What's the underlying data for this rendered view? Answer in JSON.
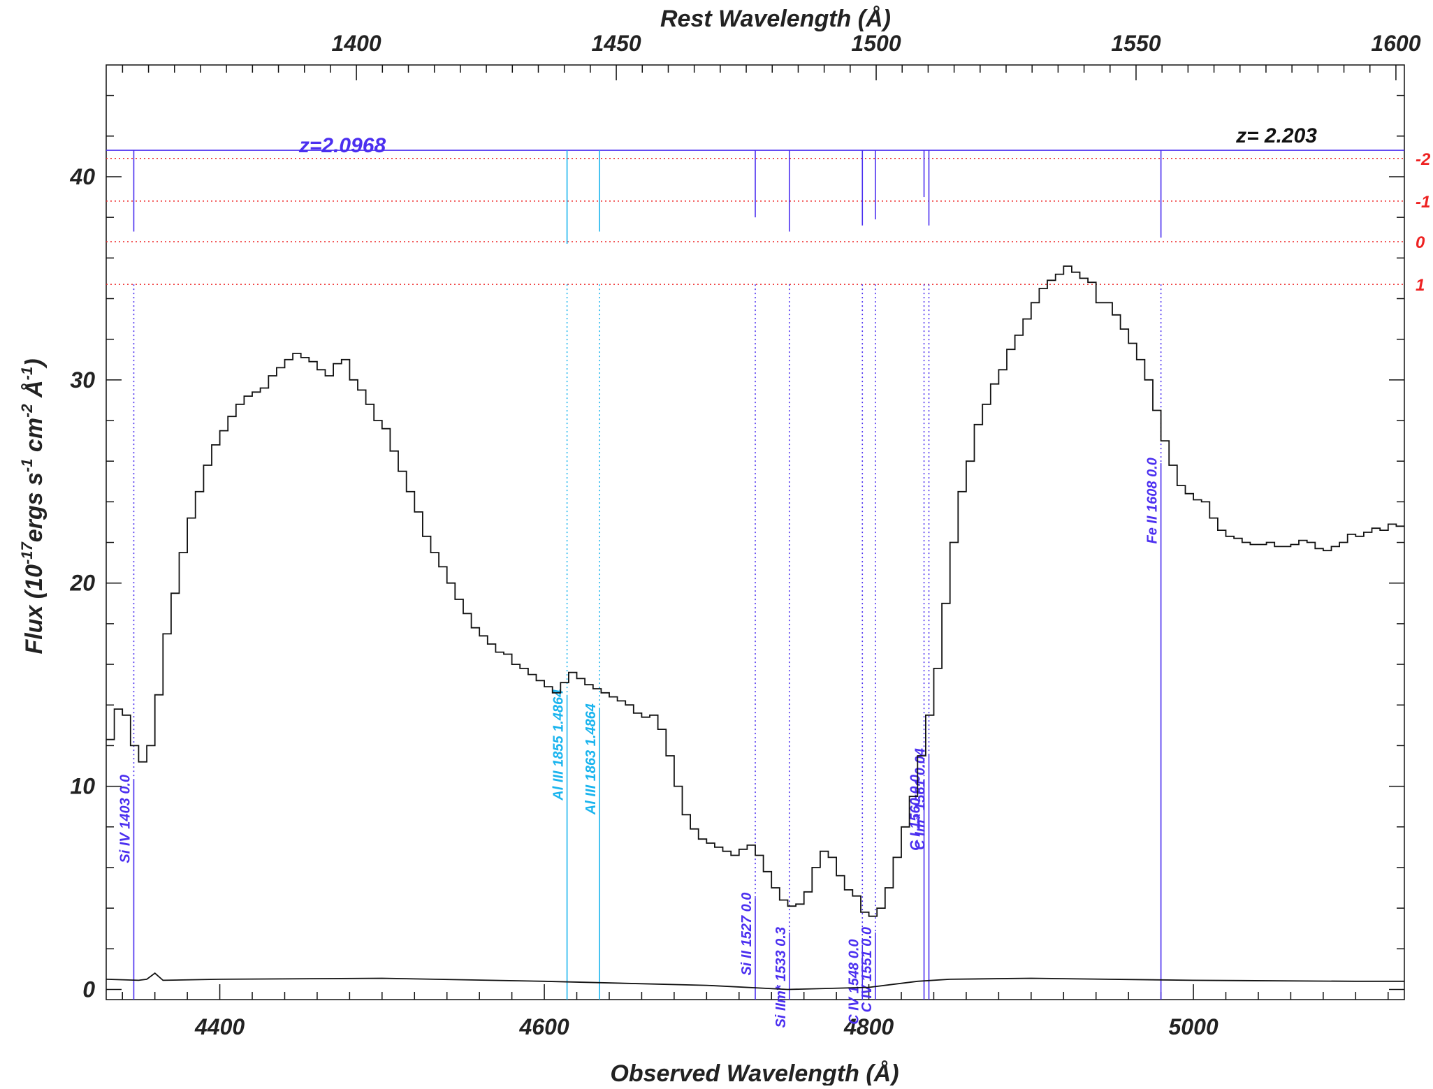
{
  "chart_data": {
    "type": "line",
    "xlabel": "Observed Wavelength (Å)",
    "ylabel": "Flux (10^-17 ergs s^-1 cm^-2 Å^-1)",
    "ylabel_parts": {
      "a": "Flux (10",
      "exp1": "-17",
      "b": "ergs s",
      "exp2": "-1",
      "c": " cm",
      "exp3": "-2",
      "d": " Å",
      "exp4": "-1",
      "e": ")"
    },
    "top_xlabel": "Rest Wavelength (Å)",
    "xlim": [
      4330,
      5130
    ],
    "ylim": [
      -0.5,
      45.5
    ],
    "x_ticks": [
      4400,
      4600,
      4800,
      5000
    ],
    "x_tick_labels": [
      "4400",
      "4600",
      "4800",
      "5000"
    ],
    "y_ticks": [
      0,
      10,
      20,
      30,
      40
    ],
    "y_tick_labels": [
      "0",
      "10",
      "20",
      "30",
      "40"
    ],
    "top_ticks": [
      1400,
      1450,
      1500,
      1550,
      1600
    ],
    "top_tick_labels": [
      "1400",
      "1450",
      "1500",
      "1550",
      "1600"
    ],
    "z_source": 2.203,
    "z_label": "z= 2.203",
    "absorber_label": "z=2.0968",
    "sigma_levels": [
      {
        "label": "-2",
        "y": 40.9
      },
      {
        "label": "-1",
        "y": 38.8
      },
      {
        "label": "0",
        "y": 36.8
      },
      {
        "label": "1",
        "y": 34.7
      }
    ],
    "absorber_top_y": 41.3,
    "colors": {
      "spectrum": "#111111",
      "error": "#111111",
      "blue": "#4b2ff0",
      "cyan": "#1ab4ee",
      "red": "#ee2222",
      "axis": "#111111"
    },
    "absorption_lines": [
      {
        "label": "Si IV 1403 0.0",
        "x": 4347,
        "color": "blue",
        "top_y": 37.3,
        "bottom_y": 10.3
      },
      {
        "label": "Al III 1855 1.4864",
        "x": 4614,
        "color": "cyan",
        "top_y": 36.7,
        "bottom_y": 14.5
      },
      {
        "label": "Al III 1863 1.4864",
        "x": 4634,
        "color": "cyan",
        "top_y": 37.3,
        "bottom_y": 13.8
      },
      {
        "label": "Si II 1527 0.0",
        "x": 4730,
        "color": "blue",
        "top_y": 38.0,
        "bottom_y": 4.5
      },
      {
        "label": "Si IIm* 1533 0.3",
        "x": 4751,
        "color": "blue",
        "top_y": 37.3,
        "bottom_y": 2.8
      },
      {
        "label": "C IV 1548 0.0",
        "x": 4796,
        "color": "blue",
        "top_y": 37.6,
        "bottom_y": 2.2
      },
      {
        "label": "C IV 1551 0.0",
        "x": 4804,
        "color": "blue",
        "top_y": 37.9,
        "bottom_y": 2.8
      },
      {
        "label": "C I 1560 0.0",
        "x": 4834,
        "color": "blue",
        "top_y": 39.0,
        "bottom_y": 10.3
      },
      {
        "label": "C Im* 1561 0.04",
        "x": 4837,
        "color": "blue",
        "top_y": 37.6,
        "bottom_y": 11.6
      },
      {
        "label": "Fe II 1608 0.0",
        "x": 4980,
        "color": "blue",
        "top_y": 37.0,
        "bottom_y": 25.9
      }
    ],
    "series": [
      {
        "name": "flux",
        "style": "histogram",
        "x": [
          4330,
          4335,
          4340,
          4345,
          4350,
          4355,
          4360,
          4365,
          4370,
          4375,
          4380,
          4385,
          4390,
          4395,
          4400,
          4405,
          4410,
          4415,
          4420,
          4425,
          4430,
          4435,
          4440,
          4445,
          4450,
          4455,
          4460,
          4465,
          4470,
          4475,
          4480,
          4485,
          4490,
          4495,
          4500,
          4505,
          4510,
          4515,
          4520,
          4525,
          4530,
          4535,
          4540,
          4545,
          4550,
          4555,
          4560,
          4565,
          4570,
          4575,
          4580,
          4585,
          4590,
          4595,
          4600,
          4605,
          4610,
          4615,
          4620,
          4625,
          4630,
          4635,
          4640,
          4645,
          4650,
          4655,
          4660,
          4665,
          4670,
          4675,
          4680,
          4685,
          4690,
          4695,
          4700,
          4705,
          4710,
          4715,
          4720,
          4725,
          4730,
          4735,
          4740,
          4745,
          4750,
          4755,
          4760,
          4765,
          4770,
          4775,
          4780,
          4785,
          4790,
          4795,
          4800,
          4805,
          4810,
          4815,
          4820,
          4825,
          4830,
          4835,
          4840,
          4845,
          4850,
          4855,
          4860,
          4865,
          4870,
          4875,
          4880,
          4885,
          4890,
          4895,
          4900,
          4905,
          4910,
          4915,
          4920,
          4925,
          4930,
          4935,
          4940,
          4945,
          4950,
          4955,
          4960,
          4965,
          4970,
          4975,
          4980,
          4985,
          4990,
          4995,
          5000,
          5005,
          5010,
          5015,
          5020,
          5025,
          5030,
          5035,
          5040,
          5045,
          5050,
          5055,
          5060,
          5065,
          5070,
          5075,
          5080,
          5085,
          5090,
          5095,
          5100,
          5105,
          5110,
          5115,
          5120,
          5125
        ],
        "y": [
          12.3,
          13.8,
          13.5,
          12.0,
          11.2,
          12.0,
          14.5,
          17.5,
          19.5,
          21.5,
          23.2,
          24.5,
          25.8,
          26.8,
          27.5,
          28.2,
          28.8,
          29.2,
          29.4,
          29.6,
          30.2,
          30.6,
          31.0,
          31.3,
          31.1,
          30.9,
          30.5,
          30.2,
          30.8,
          31.0,
          30.0,
          29.5,
          28.8,
          28.0,
          27.6,
          26.5,
          25.5,
          24.5,
          23.5,
          22.3,
          21.5,
          20.8,
          20.0,
          19.2,
          18.5,
          17.8,
          17.4,
          17.0,
          16.6,
          16.5,
          16.0,
          15.8,
          15.5,
          15.2,
          14.9,
          14.6,
          15.1,
          15.6,
          15.3,
          15.0,
          14.8,
          14.6,
          14.4,
          14.2,
          14.0,
          13.6,
          13.4,
          13.5,
          12.8,
          11.5,
          10.0,
          8.6,
          7.9,
          7.4,
          7.2,
          7.0,
          6.8,
          6.6,
          6.9,
          7.1,
          6.6,
          5.8,
          5.0,
          4.4,
          4.1,
          4.2,
          4.8,
          6.0,
          6.8,
          6.5,
          5.6,
          4.9,
          4.6,
          3.8,
          3.6,
          4.0,
          5.0,
          6.5,
          8.0,
          9.5,
          11.5,
          13.5,
          15.8,
          19.0,
          22.0,
          24.5,
          26.0,
          27.8,
          28.8,
          29.8,
          30.5,
          31.5,
          32.2,
          33.0,
          33.8,
          34.5,
          34.9,
          35.2,
          35.6,
          35.3,
          35.0,
          34.8,
          33.8,
          33.8,
          33.2,
          32.5,
          31.8,
          31.0,
          30.0,
          28.5,
          27.0,
          25.8,
          24.8,
          24.4,
          24.1,
          24.0,
          23.2,
          22.6,
          22.3,
          22.2,
          22.0,
          21.9,
          21.9,
          22.0,
          21.8,
          21.8,
          21.9,
          22.1,
          22.0,
          21.7,
          21.6,
          21.8,
          22.0,
          22.4,
          22.3,
          22.5,
          22.7,
          22.6,
          22.9,
          22.8
        ]
      },
      {
        "name": "error",
        "style": "line",
        "x": [
          4330,
          4350,
          4355,
          4360,
          4365,
          4400,
          4500,
          4600,
          4700,
          4750,
          4800,
          4830,
          4850,
          4900,
          5000,
          5100,
          5130
        ],
        "y": [
          0.5,
          0.45,
          0.5,
          0.8,
          0.45,
          0.5,
          0.55,
          0.4,
          0.2,
          0.0,
          0.1,
          0.4,
          0.5,
          0.55,
          0.45,
          0.4,
          0.4
        ]
      }
    ]
  }
}
